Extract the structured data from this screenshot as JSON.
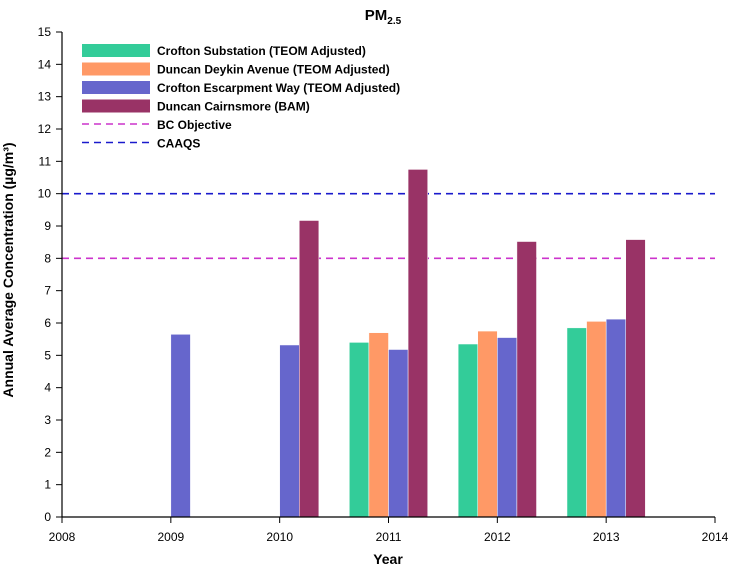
{
  "chart_data": {
    "type": "bar",
    "title": "PM",
    "title_subscript": "2.5",
    "xlabel": "Year",
    "ylabel": "Annual Average Concentration (µg/m³)",
    "xlim": [
      2008,
      2014
    ],
    "ylim": [
      0,
      15
    ],
    "xticks": [
      "2008",
      "2009",
      "2010",
      "2011",
      "2012",
      "2013",
      "2014"
    ],
    "yticks": [
      "0",
      "1",
      "2",
      "3",
      "4",
      "5",
      "6",
      "7",
      "8",
      "9",
      "10",
      "11",
      "12",
      "13",
      "14",
      "15"
    ],
    "categories": [
      2009,
      2010,
      2011,
      2012,
      2013
    ],
    "grid": false,
    "legend_position": "top-left",
    "series": [
      {
        "name": "Crofton Substation  (TEOM Adjusted)",
        "color": "#33cc99",
        "values": [
          null,
          null,
          5.4,
          5.35,
          5.85
        ]
      },
      {
        "name": "Duncan Deykin Avenue  (TEOM Adjusted)",
        "color": "#ff9966",
        "values": [
          null,
          null,
          5.7,
          5.75,
          6.05
        ]
      },
      {
        "name": "Crofton Escarpment Way (TEOM Adjusted)",
        "color": "#6666cc",
        "values": [
          5.65,
          5.32,
          5.18,
          5.55,
          6.12
        ]
      },
      {
        "name": "Duncan Cairnsmore (BAM)",
        "color": "#993366",
        "values": [
          null,
          9.17,
          10.75,
          8.52,
          8.58
        ]
      }
    ],
    "reference_lines": [
      {
        "name": "BC Objective",
        "value": 8,
        "color": "#cc33cc"
      },
      {
        "name": "CAAQS",
        "value": 10,
        "color": "#1a1acc"
      }
    ]
  }
}
